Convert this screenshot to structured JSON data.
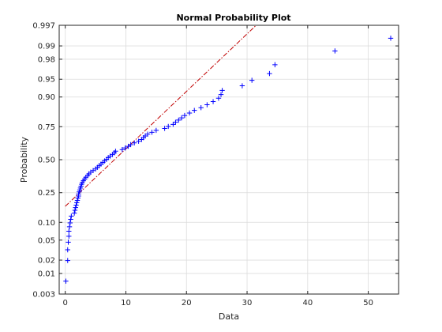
{
  "chart_data": {
    "type": "scatter",
    "title": "Normal Probability Plot",
    "xlabel": "Data",
    "ylabel": "Probability",
    "xlim": [
      -1,
      55
    ],
    "ylim_probability": [
      0.003,
      0.997
    ],
    "y_scale": "normal-probability",
    "grid": true,
    "marker": "+",
    "marker_color": "#0000ff",
    "reference_line_color": "#c00000",
    "x_ticks": [
      0,
      10,
      20,
      30,
      40,
      50
    ],
    "y_ticks": [
      0.003,
      0.01,
      0.02,
      0.05,
      0.1,
      0.25,
      0.5,
      0.75,
      0.9,
      0.95,
      0.98,
      0.99,
      0.997
    ],
    "y_tick_labels": [
      "0.003",
      "0.01",
      "0.02",
      "0.05",
      "0.10",
      "0.25",
      "0.50",
      "0.75",
      "0.90",
      "0.95",
      "0.98",
      "0.99",
      "0.997"
    ],
    "reference_line": [
      {
        "x": 0,
        "p": 0.17
      },
      {
        "x": 31.5,
        "p": 0.997
      }
    ],
    "points": {
      "x": [
        0.1,
        0.4,
        0.4,
        0.5,
        0.6,
        0.6,
        0.7,
        0.8,
        0.9,
        1.0,
        1.5,
        1.6,
        1.7,
        1.8,
        1.9,
        2.0,
        2.1,
        2.2,
        2.2,
        2.3,
        2.4,
        2.5,
        2.6,
        2.7,
        2.8,
        3.0,
        3.2,
        3.4,
        3.7,
        3.9,
        4.2,
        4.6,
        5.0,
        5.3,
        5.6,
        5.9,
        6.2,
        6.5,
        6.8,
        7.1,
        7.4,
        7.8,
        8.1,
        8.3,
        9.4,
        9.9,
        10.4,
        10.8,
        11.4,
        12.1,
        12.6,
        12.9,
        13.2,
        13.6,
        14.3,
        15.0,
        16.4,
        17.0,
        17.8,
        18.2,
        18.7,
        19.2,
        19.7,
        20.5,
        21.3,
        22.4,
        23.4,
        24.4,
        25.3,
        25.7,
        25.9,
        29.2,
        30.8,
        33.7,
        34.6,
        44.5,
        53.7
      ],
      "p": [
        0.0065,
        0.0196,
        0.0327,
        0.0458,
        0.0588,
        0.0719,
        0.085,
        0.098,
        0.1111,
        0.1242,
        0.1373,
        0.1503,
        0.1634,
        0.1765,
        0.1895,
        0.2026,
        0.2157,
        0.2288,
        0.2418,
        0.2549,
        0.268,
        0.281,
        0.2941,
        0.3072,
        0.3203,
        0.3333,
        0.3464,
        0.3595,
        0.3725,
        0.3856,
        0.3987,
        0.4118,
        0.4248,
        0.4379,
        0.451,
        0.4641,
        0.4771,
        0.4902,
        0.5033,
        0.5163,
        0.5294,
        0.5425,
        0.5556,
        0.5686,
        0.5817,
        0.5948,
        0.6078,
        0.6209,
        0.634,
        0.6471,
        0.6601,
        0.6732,
        0.6863,
        0.6993,
        0.7124,
        0.7255,
        0.7386,
        0.7516,
        0.7647,
        0.7778,
        0.7908,
        0.8039,
        0.817,
        0.8301,
        0.8431,
        0.8562,
        0.8693,
        0.8824,
        0.8954,
        0.9085,
        0.9216,
        0.9346,
        0.9477,
        0.9608,
        0.9739,
        0.9869,
        0.9935
      ]
    }
  }
}
